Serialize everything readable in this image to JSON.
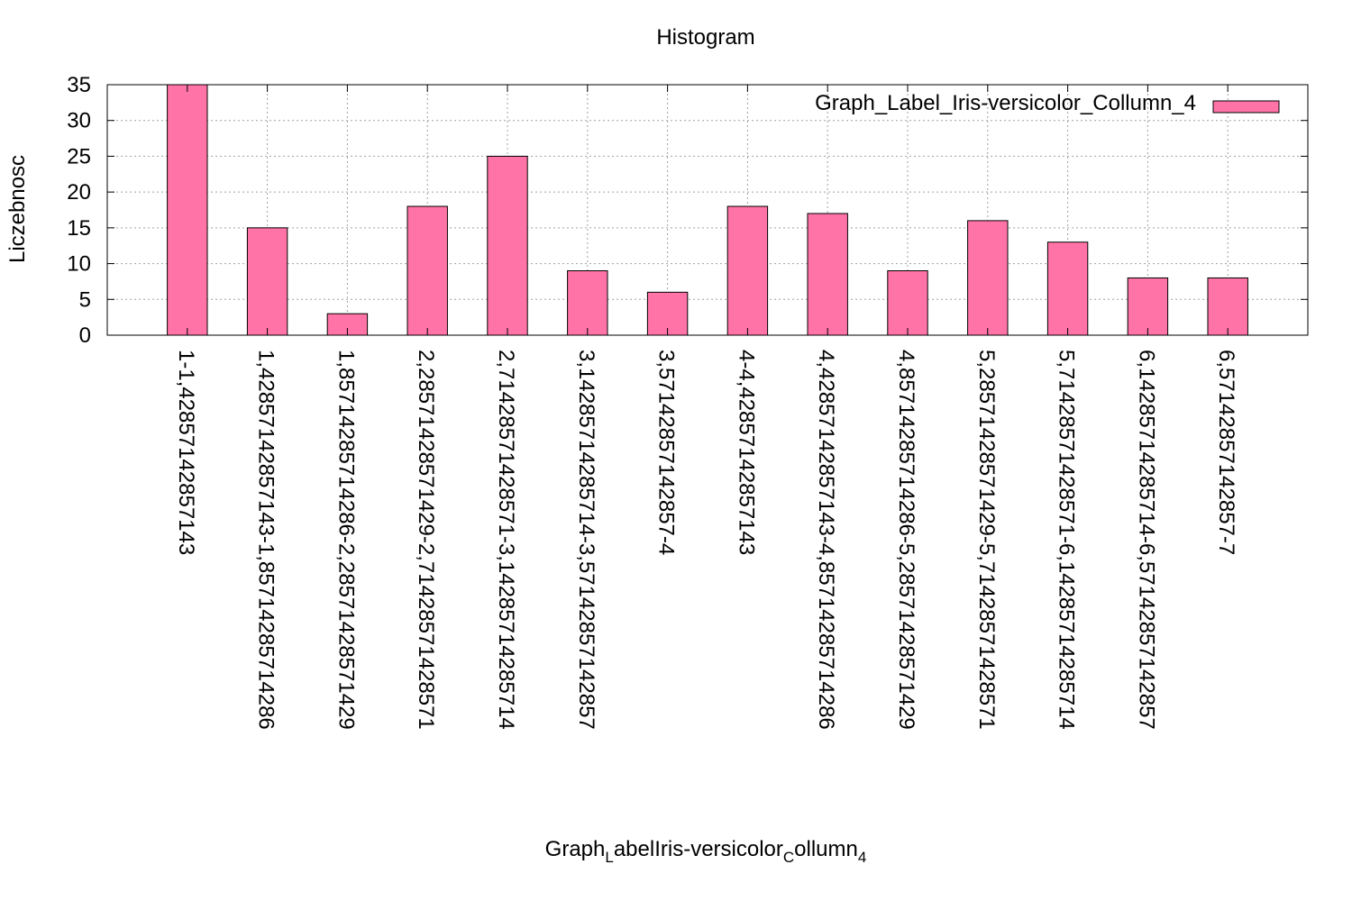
{
  "chart_data": {
    "type": "bar",
    "title": "Histogram",
    "ylabel": "Liczebnosc",
    "xlabel": {
      "parts": [
        {
          "text": "Graph",
          "sub": false
        },
        {
          "text": "L",
          "sub": true
        },
        {
          "text": "abelIris-versicolor",
          "sub": false
        },
        {
          "text": "C",
          "sub": true
        },
        {
          "text": "ollumn",
          "sub": false
        },
        {
          "text": "4",
          "sub": true
        }
      ]
    },
    "ylim": [
      0,
      35
    ],
    "yticks": [
      0,
      5,
      10,
      15,
      20,
      25,
      30,
      35
    ],
    "grid": true,
    "legend_position": "top-right",
    "colors": {
      "bar": "#ff73a6",
      "bar_edge": "#000000",
      "grid": "#a0a0a0"
    },
    "categories": [
      "1-1,42857142857143",
      "1,42857142857143-1,85714285714286",
      "1,85714285714286-2,28571428571429",
      "2,28571428571429-2,71428571428571",
      "2,71428571428571-3,14285714285714",
      "3,14285714285714-3,57142857142857",
      "3,57142857142857-4",
      "4-4,42857142857143",
      "4,42857142857143-4,85714285714286",
      "4,85714285714286-5,28571428571429",
      "5,28571428571429-5,71428571428571",
      "5,71428571428571-6,14285714285714",
      "6,14285714285714-6,57142857142857",
      "6,57142857142857-7"
    ],
    "series": [
      {
        "name": "Graph_Label_Iris-versicolor_Collumn_4",
        "values": [
          35,
          15,
          3,
          18,
          25,
          9,
          6,
          18,
          17,
          9,
          16,
          13,
          8,
          8
        ]
      }
    ]
  }
}
